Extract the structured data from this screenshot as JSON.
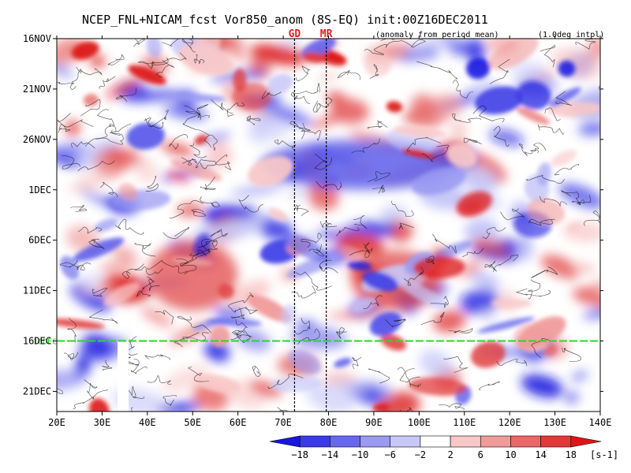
{
  "chart_data": {
    "type": "heatmap",
    "title": "NCEP_FNL+NICAM_fcst Vor850_anom (8S-EQ) init:00Z16DEC2011",
    "subtitle": "(anomaly from period mean)",
    "interp_note": "(1.0deg intpl)",
    "x_ticks": [
      "20E",
      "30E",
      "40E",
      "50E",
      "60E",
      "70E",
      "80E",
      "90E",
      "100E",
      "110E",
      "120E",
      "130E",
      "140E"
    ],
    "x_tick_values": [
      20,
      30,
      40,
      50,
      60,
      70,
      80,
      90,
      100,
      110,
      120,
      130,
      140
    ],
    "xlim": [
      20,
      140
    ],
    "y_ticks": [
      "16NOV",
      "21NOV",
      "26NOV",
      "1DEC",
      "6DEC",
      "11DEC",
      "16DEC",
      "21DEC"
    ],
    "y_tick_days": [
      0,
      5,
      10,
      15,
      20,
      25,
      30,
      35
    ],
    "ylim_days": [
      0,
      37
    ],
    "y_axis_start": "16NOV2011",
    "forecast_start_label": "16DEC",
    "forecast_start_day": 30,
    "vertical_markers": [
      {
        "label": "GD",
        "lon": 72.5
      },
      {
        "label": "MR",
        "lon": 79.5
      }
    ],
    "colorbar": {
      "levels": [
        -18,
        -14,
        -10,
        -6,
        -2,
        2,
        6,
        10,
        14,
        18
      ],
      "level_labels": [
        "−18",
        "−14",
        "−10",
        "−6",
        "−2",
        "2",
        "6",
        "10",
        "14",
        "18"
      ],
      "colors": [
        "#1616e0",
        "#3a3ae6",
        "#6868ec",
        "#9a9af2",
        "#c8c8f8",
        "#ffffff",
        "#f8c8c8",
        "#f09a9a",
        "#e86868",
        "#e03a3a",
        "#dc1616"
      ],
      "unit": "[s-1]"
    },
    "features": [
      {
        "name": "positive_band_1",
        "lon_start": 40,
        "lon_end": 60,
        "day_start": 20,
        "day_end": 27,
        "sign": "positive"
      },
      {
        "name": "positive_band_2",
        "lon_start": 85,
        "lon_end": 105,
        "day_start": 21,
        "day_end": 27,
        "sign": "positive"
      },
      {
        "name": "negative_diag",
        "lon_start": 65,
        "lon_end": 110,
        "day_start": 10,
        "day_end": 15,
        "sign": "negative"
      }
    ]
  }
}
